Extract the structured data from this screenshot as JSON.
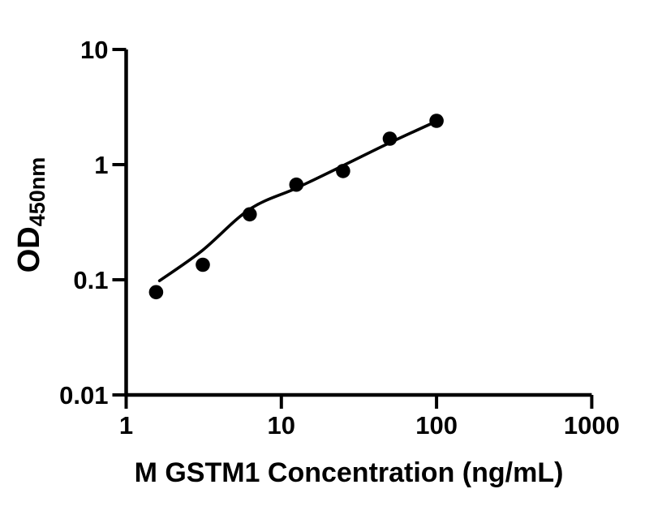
{
  "figure": {
    "background_color": "#ffffff",
    "ink_color": "#000000"
  },
  "chart_data": {
    "type": "scatter",
    "title": "",
    "xlabel": "M GSTM1 Concentration (ng/mL)",
    "ylabel_main": "OD",
    "ylabel_sub": "450nm",
    "x_scale": "log10",
    "y_scale": "log10",
    "xlim": [
      1,
      1000
    ],
    "ylim": [
      0.01,
      10
    ],
    "grid": false,
    "legend": "none",
    "x_ticks": [
      {
        "value": 1,
        "label": "1"
      },
      {
        "value": 10,
        "label": "10"
      },
      {
        "value": 100,
        "label": "100"
      },
      {
        "value": 1000,
        "label": "1000"
      }
    ],
    "y_ticks": [
      {
        "value": 10,
        "label": "10"
      },
      {
        "value": 1,
        "label": "1"
      },
      {
        "value": 0.1,
        "label": "0.1"
      },
      {
        "value": 0.01,
        "label": "0.01"
      }
    ],
    "series": [
      {
        "marker": "filled-circle",
        "color": "#000000",
        "points": [
          {
            "x": 1.56,
            "y": 0.078
          },
          {
            "x": 3.12,
            "y": 0.135
          },
          {
            "x": 6.25,
            "y": 0.37
          },
          {
            "x": 12.5,
            "y": 0.67
          },
          {
            "x": 25,
            "y": 0.88
          },
          {
            "x": 50,
            "y": 1.68
          },
          {
            "x": 100,
            "y": 2.4
          }
        ]
      }
    ],
    "fit_curve": {
      "color": "#000000",
      "points": [
        {
          "x": 1.64,
          "y": 0.098
        },
        {
          "x": 3.1,
          "y": 0.18
        },
        {
          "x": 6.25,
          "y": 0.41
        },
        {
          "x": 12.5,
          "y": 0.625
        },
        {
          "x": 25,
          "y": 0.98
        },
        {
          "x": 50,
          "y": 1.55
        },
        {
          "x": 100,
          "y": 2.38
        }
      ]
    }
  }
}
